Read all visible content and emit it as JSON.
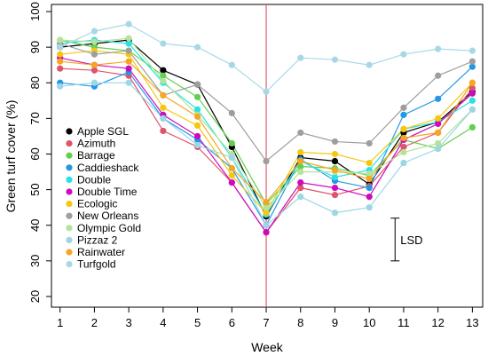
{
  "chart_data": {
    "type": "line",
    "xlabel": "Week",
    "ylabel": "Green turf cover (%)",
    "x": [
      1,
      2,
      3,
      4,
      5,
      6,
      7,
      8,
      9,
      10,
      11,
      12,
      13
    ],
    "xlim": [
      0.75,
      13.3
    ],
    "ylim": [
      17,
      102
    ],
    "yticks": [
      20,
      30,
      40,
      50,
      60,
      70,
      80,
      90,
      100
    ],
    "grid": false,
    "legend_position": "left",
    "reference_line": {
      "x": 7,
      "color": "#e06070"
    },
    "lsd": {
      "label": "LSD",
      "x": 10.75,
      "ymin": 30,
      "ymax": 42
    },
    "series": [
      {
        "name": "Apple SGL",
        "color": "#000000",
        "values": [
          90,
          91,
          92,
          83.5,
          79.5,
          62,
          42.5,
          59,
          58,
          51.5,
          66,
          69,
          77.5
        ]
      },
      {
        "name": "Azimuth",
        "color": "#df536b",
        "values": [
          84,
          83.5,
          82,
          66.5,
          62,
          52,
          38,
          50.5,
          48.5,
          51,
          62,
          66,
          78.5
        ]
      },
      {
        "name": "Barrage",
        "color": "#61d04f",
        "values": [
          92,
          90,
          89,
          82,
          76,
          63,
          46,
          56.5,
          56,
          54,
          64,
          61.5,
          67.5
        ]
      },
      {
        "name": "Caddieshack",
        "color": "#2297e6",
        "values": [
          80,
          79,
          83,
          70,
          64,
          56,
          40,
          58.5,
          52.5,
          50.5,
          71,
          75.5,
          84.5
        ]
      },
      {
        "name": "Double",
        "color": "#28e2e5",
        "values": [
          91,
          92,
          91,
          80,
          72.5,
          59,
          43,
          58,
          53.5,
          55.5,
          67,
          69,
          75
        ]
      },
      {
        "name": "Double Time",
        "color": "#cd0bbc",
        "values": [
          87,
          85,
          84,
          71,
          65,
          52,
          38,
          52,
          50.5,
          48,
          64,
          68.5,
          77
        ]
      },
      {
        "name": "Ecologic",
        "color": "#f5c710",
        "values": [
          88,
          89,
          88,
          73,
          68,
          54,
          43.5,
          60.5,
          60,
          57.5,
          67,
          70,
          80
        ]
      },
      {
        "name": "New Orleans",
        "color": "#9e9e9e",
        "values": [
          91,
          88,
          89,
          76.5,
          79.5,
          71.5,
          58,
          66,
          63.5,
          63,
          73,
          82,
          86
        ]
      },
      {
        "name": "Olympic Gold",
        "color": "#b6e39a",
        "values": [
          92,
          91.5,
          92.5,
          80.5,
          71,
          60,
          45,
          55,
          55,
          54.5,
          60.5,
          63,
          72.5
        ]
      },
      {
        "name": "Pizzaz 2",
        "color": "#9bd7e5",
        "values": [
          79,
          80,
          80,
          70,
          62.5,
          59,
          40,
          48,
          43.5,
          45,
          57.5,
          61.5,
          72.5
        ]
      },
      {
        "name": "Rainwater",
        "color": "#f5a623",
        "values": [
          86,
          85,
          86,
          76.5,
          70.5,
          56,
          46.5,
          58,
          55.5,
          53,
          64.5,
          66,
          80
        ]
      },
      {
        "name": "Turfgold",
        "color": "#a8d8e8",
        "values": [
          90,
          94.5,
          96.5,
          91,
          90,
          85,
          77.5,
          87,
          86.5,
          85,
          88,
          89.5,
          89
        ]
      }
    ]
  }
}
